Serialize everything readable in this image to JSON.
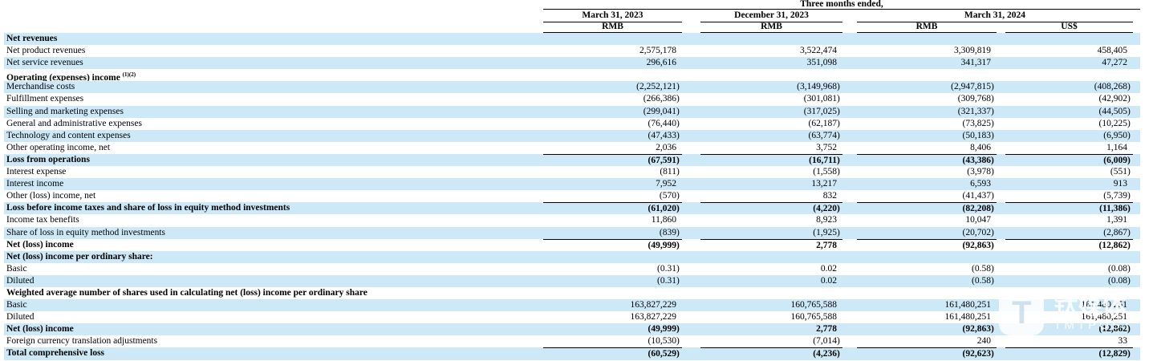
{
  "colors": {
    "shade": "#cde9f8",
    "rule": "#000000"
  },
  "header": {
    "group": "Three months ended,",
    "dates": [
      "March 31, 2023",
      "December 31, 2023",
      "March 31, 2024"
    ],
    "units": [
      "RMB",
      "RMB",
      "RMB",
      "US$"
    ]
  },
  "rows": [
    {
      "label": "Net revenues",
      "bold": true,
      "shaded": true,
      "values": null
    },
    {
      "label": "Net product revenues",
      "bold": false,
      "shaded": false,
      "values": [
        "2,575,178",
        "3,522,474",
        "3,309,819",
        "458,405"
      ]
    },
    {
      "label": "Net service revenues",
      "bold": false,
      "shaded": true,
      "values": [
        "296,616",
        "351,098",
        "341,317",
        "47,272"
      ]
    },
    {
      "label": "Operating (expenses) income ",
      "sup": "(1)(2)",
      "bold": true,
      "shaded": false,
      "values": null
    },
    {
      "label": "Merchandise costs",
      "bold": false,
      "shaded": true,
      "values": [
        "(2,252,121)",
        "(3,149,968)",
        "(2,947,815)",
        "(408,268)"
      ]
    },
    {
      "label": "Fulfillment expenses",
      "bold": false,
      "shaded": false,
      "values": [
        "(266,386)",
        "(301,081)",
        "(309,768)",
        "(42,902)"
      ]
    },
    {
      "label": "Selling and marketing expenses",
      "bold": false,
      "shaded": true,
      "values": [
        "(299,041)",
        "(317,025)",
        "(321,337)",
        "(44,505)"
      ]
    },
    {
      "label": "General and administrative expenses",
      "bold": false,
      "shaded": false,
      "values": [
        "(76,440)",
        "(62,187)",
        "(73,825)",
        "(10,225)"
      ]
    },
    {
      "label": "Technology and content expenses",
      "bold": false,
      "shaded": true,
      "values": [
        "(47,433)",
        "(63,774)",
        "(50,183)",
        "(6,950)"
      ]
    },
    {
      "label": "Other operating income, net",
      "bold": false,
      "shaded": false,
      "values": [
        "2,036",
        "3,752",
        "8,406",
        "1,164"
      ]
    },
    {
      "label": "Loss from operations",
      "bold": true,
      "shaded": true,
      "topline": true,
      "values": [
        "(67,591)",
        "(16,711)",
        "(43,386)",
        "(6,009)"
      ]
    },
    {
      "label": "Interest expense",
      "bold": false,
      "shaded": false,
      "values": [
        "(811)",
        "(1,558)",
        "(3,978)",
        "(551)"
      ]
    },
    {
      "label": "Interest income",
      "bold": false,
      "shaded": true,
      "values": [
        "7,952",
        "13,217",
        "6,593",
        "913"
      ]
    },
    {
      "label": "Other (loss) income, net",
      "bold": false,
      "shaded": false,
      "values": [
        "(570)",
        "832",
        "(41,437)",
        "(5,739)"
      ]
    },
    {
      "label": "Loss before income taxes and share of loss in equity method investments",
      "bold": true,
      "shaded": true,
      "topline": true,
      "values": [
        "(61,020)",
        "(4,220)",
        "(82,208)",
        "(11,386)"
      ]
    },
    {
      "label": "Income tax benefits",
      "bold": false,
      "shaded": false,
      "values": [
        "11,860",
        "8,923",
        "10,047",
        "1,391"
      ]
    },
    {
      "label": "Share of loss in equity method investments",
      "bold": false,
      "shaded": true,
      "values": [
        "(839)",
        "(1,925)",
        "(20,702)",
        "(2,867)"
      ]
    },
    {
      "label": "Net (loss) income",
      "bold": true,
      "shaded": false,
      "topline": true,
      "values": [
        "(49,999)",
        "2,778",
        "(92,863)",
        "(12,862)"
      ]
    },
    {
      "label": "Net (loss) income per ordinary share:",
      "bold": true,
      "shaded": true,
      "values": null
    },
    {
      "label": "Basic",
      "bold": false,
      "shaded": false,
      "values": [
        "(0.31)",
        "0.02",
        "(0.58)",
        "(0.08)"
      ]
    },
    {
      "label": "Diluted",
      "bold": false,
      "shaded": true,
      "values": [
        "(0.31)",
        "0.02",
        "(0.58)",
        "(0.08)"
      ]
    },
    {
      "label": "Weighted average number of shares used in calculating net (loss) income per ordinary share",
      "bold": true,
      "shaded": false,
      "values": null
    },
    {
      "label": "Basic",
      "bold": false,
      "shaded": true,
      "values": [
        "163,827,229",
        "160,765,588",
        "161,480,251",
        "161,480,251"
      ]
    },
    {
      "label": "Diluted",
      "bold": false,
      "shaded": false,
      "values": [
        "163,827,229",
        "160,765,588",
        "161,480,251",
        "161,480,251"
      ]
    },
    {
      "label": "Net (loss) income",
      "bold": true,
      "shaded": true,
      "values": [
        "(49,999)",
        "2,778",
        "(92,863)",
        "(12,862)"
      ]
    },
    {
      "label": "Foreign currency translation adjustments",
      "bold": false,
      "shaded": false,
      "values": [
        "(10,530)",
        "(7,014)",
        "240",
        "33"
      ]
    },
    {
      "label": "Total comprehensive loss",
      "bold": true,
      "shaded": true,
      "topline": true,
      "values": [
        "(60,529)",
        "(4,236)",
        "(92,623)",
        "(12,829)"
      ]
    }
  ],
  "watermark": {
    "cn": "钛媒体",
    "en": "TMTPOST",
    "logo_letter": "T"
  }
}
